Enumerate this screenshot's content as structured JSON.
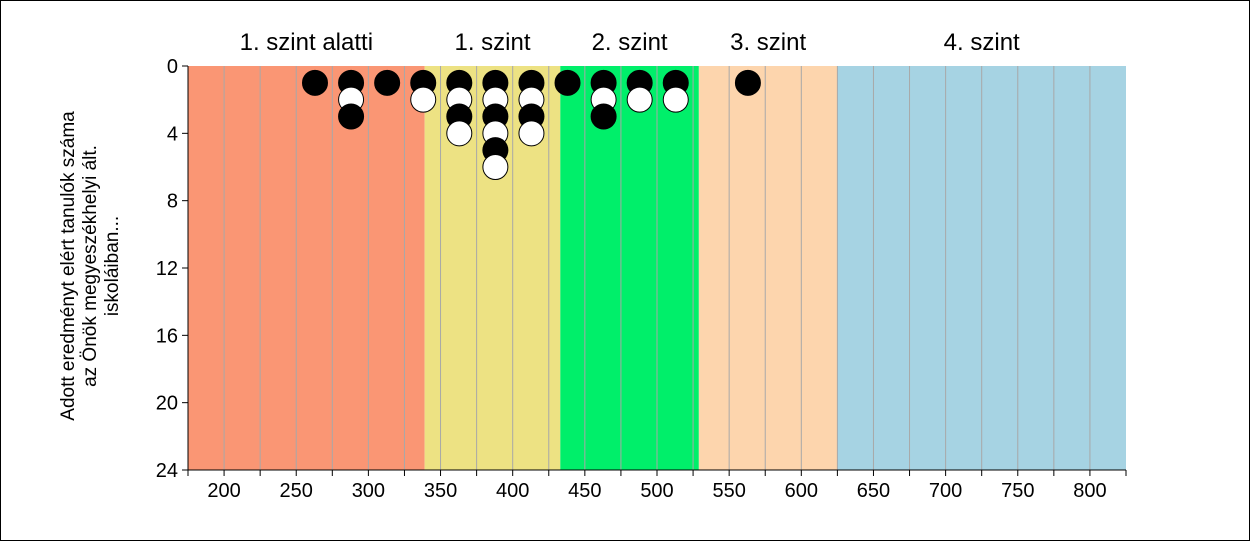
{
  "chart_data": {
    "type": "scatter",
    "title": "",
    "xlabel": "",
    "ylabel_lines": [
      "Adott eredményt elért tanulók száma",
      "az Önök megyeszékhelyi ált.",
      "iskoláiban..."
    ],
    "xlim": [
      175,
      825
    ],
    "ylim": [
      0,
      24
    ],
    "y_inverted": true,
    "x_ticks": [
      200,
      250,
      300,
      350,
      400,
      450,
      500,
      550,
      600,
      650,
      700,
      750,
      800
    ],
    "y_ticks": [
      0,
      4,
      8,
      12,
      16,
      20,
      24
    ],
    "minor_grid_x_step": 25,
    "grid": true,
    "bands": [
      {
        "label": "1. szint alatti",
        "from": 175,
        "to": 339,
        "color": "#fa9674"
      },
      {
        "label": "1. szint",
        "from": 339,
        "to": 433,
        "color": "#ede283"
      },
      {
        "label": "2. szint",
        "from": 433,
        "to": 529,
        "color": "#00ef6a"
      },
      {
        "label": "3. szint",
        "from": 529,
        "to": 625,
        "color": "#fdd5ad"
      },
      {
        "label": "4. szint",
        "from": 625,
        "to": 825,
        "color": "#a6d3e3"
      }
    ],
    "dots": {
      "colors": {
        "black": "#000000",
        "white": "#ffffff"
      },
      "points": [
        {
          "x": 263,
          "y": 1,
          "c": "black"
        },
        {
          "x": 288,
          "y": 1,
          "c": "black"
        },
        {
          "x": 288,
          "y": 2,
          "c": "white"
        },
        {
          "x": 288,
          "y": 3,
          "c": "black"
        },
        {
          "x": 313,
          "y": 1,
          "c": "black"
        },
        {
          "x": 338,
          "y": 1,
          "c": "black"
        },
        {
          "x": 338,
          "y": 2,
          "c": "white"
        },
        {
          "x": 363,
          "y": 1,
          "c": "black"
        },
        {
          "x": 363,
          "y": 2,
          "c": "white"
        },
        {
          "x": 363,
          "y": 3,
          "c": "black"
        },
        {
          "x": 363,
          "y": 4,
          "c": "white"
        },
        {
          "x": 388,
          "y": 1,
          "c": "black"
        },
        {
          "x": 388,
          "y": 2,
          "c": "white"
        },
        {
          "x": 388,
          "y": 3,
          "c": "black"
        },
        {
          "x": 388,
          "y": 4,
          "c": "white"
        },
        {
          "x": 388,
          "y": 5,
          "c": "black"
        },
        {
          "x": 388,
          "y": 6,
          "c": "white"
        },
        {
          "x": 413,
          "y": 1,
          "c": "black"
        },
        {
          "x": 413,
          "y": 2,
          "c": "white"
        },
        {
          "x": 413,
          "y": 3,
          "c": "black"
        },
        {
          "x": 413,
          "y": 4,
          "c": "white"
        },
        {
          "x": 438,
          "y": 1,
          "c": "black"
        },
        {
          "x": 463,
          "y": 1,
          "c": "black"
        },
        {
          "x": 463,
          "y": 2,
          "c": "white"
        },
        {
          "x": 463,
          "y": 3,
          "c": "black"
        },
        {
          "x": 488,
          "y": 1,
          "c": "black"
        },
        {
          "x": 488,
          "y": 2,
          "c": "white"
        },
        {
          "x": 513,
          "y": 1,
          "c": "black"
        },
        {
          "x": 513,
          "y": 2,
          "c": "white"
        },
        {
          "x": 563,
          "y": 1,
          "c": "black"
        }
      ]
    }
  }
}
